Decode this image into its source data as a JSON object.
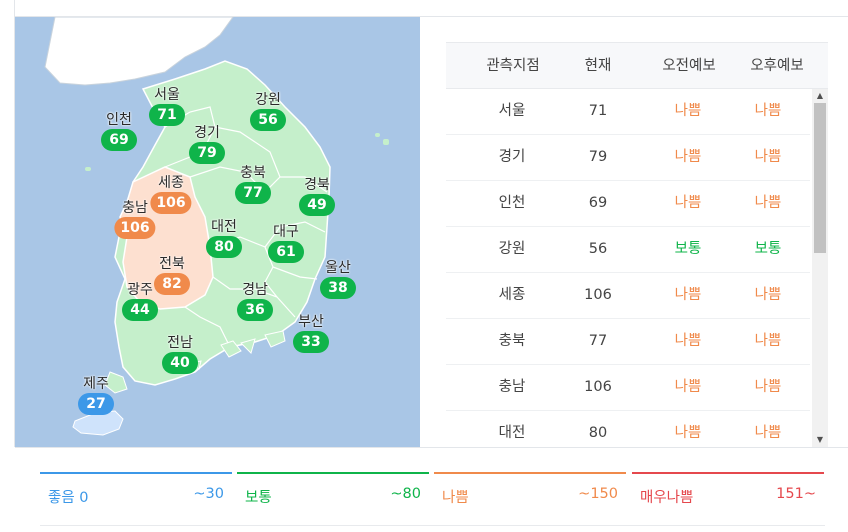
{
  "colors": {
    "good": "#3c98e8",
    "normal": "#0fb44a",
    "bad": "#f08a4b",
    "very_bad": "#e5484d",
    "bad_fill": "#fde0d0",
    "normal_fill": "#c5efcb",
    "good_fill": "#cfe3fb"
  },
  "map": {
    "regions": [
      {
        "name": "서울",
        "value": "71",
        "level": "normal"
      },
      {
        "name": "강원",
        "value": "56",
        "level": "normal"
      },
      {
        "name": "인천",
        "value": "69",
        "level": "normal"
      },
      {
        "name": "경기",
        "value": "79",
        "level": "normal"
      },
      {
        "name": "충북",
        "value": "77",
        "level": "normal"
      },
      {
        "name": "경북",
        "value": "49",
        "level": "normal"
      },
      {
        "name": "세종",
        "value": "106",
        "level": "bad"
      },
      {
        "name": "충남",
        "value": "106",
        "level": "bad"
      },
      {
        "name": "대전",
        "value": "80",
        "level": "normal"
      },
      {
        "name": "대구",
        "value": "61",
        "level": "normal"
      },
      {
        "name": "전북",
        "value": "82",
        "level": "bad"
      },
      {
        "name": "울산",
        "value": "38",
        "level": "normal"
      },
      {
        "name": "광주",
        "value": "44",
        "level": "normal"
      },
      {
        "name": "경남",
        "value": "36",
        "level": "normal"
      },
      {
        "name": "부산",
        "value": "33",
        "level": "normal"
      },
      {
        "name": "전남",
        "value": "40",
        "level": "normal"
      },
      {
        "name": "제주",
        "value": "27",
        "level": "good"
      }
    ]
  },
  "table": {
    "headers": [
      "관측지점",
      "현재",
      "오전예보",
      "오후예보"
    ],
    "rows": [
      {
        "station": "서울",
        "current": "71",
        "am": "나쁨",
        "pm": "나쁨",
        "am_level": "bad",
        "pm_level": "bad"
      },
      {
        "station": "경기",
        "current": "79",
        "am": "나쁨",
        "pm": "나쁨",
        "am_level": "bad",
        "pm_level": "bad"
      },
      {
        "station": "인천",
        "current": "69",
        "am": "나쁨",
        "pm": "나쁨",
        "am_level": "bad",
        "pm_level": "bad"
      },
      {
        "station": "강원",
        "current": "56",
        "am": "보통",
        "pm": "보통",
        "am_level": "normal",
        "pm_level": "normal"
      },
      {
        "station": "세종",
        "current": "106",
        "am": "나쁨",
        "pm": "나쁨",
        "am_level": "bad",
        "pm_level": "bad"
      },
      {
        "station": "충북",
        "current": "77",
        "am": "나쁨",
        "pm": "나쁨",
        "am_level": "bad",
        "pm_level": "bad"
      },
      {
        "station": "충남",
        "current": "106",
        "am": "나쁨",
        "pm": "나쁨",
        "am_level": "bad",
        "pm_level": "bad"
      },
      {
        "station": "대전",
        "current": "80",
        "am": "나쁨",
        "pm": "나쁨",
        "am_level": "bad",
        "pm_level": "bad"
      }
    ],
    "scroll_up_icon": "triangle-up",
    "scroll_down_icon": "triangle-down"
  },
  "legend": [
    {
      "label": "좋음 0",
      "max": "~30",
      "level": "good"
    },
    {
      "label": "보통",
      "max": "~80",
      "level": "normal"
    },
    {
      "label": "나쁨",
      "max": "~150",
      "level": "bad"
    },
    {
      "label": "매우나쁨",
      "max": "151~",
      "level": "very_bad"
    }
  ]
}
